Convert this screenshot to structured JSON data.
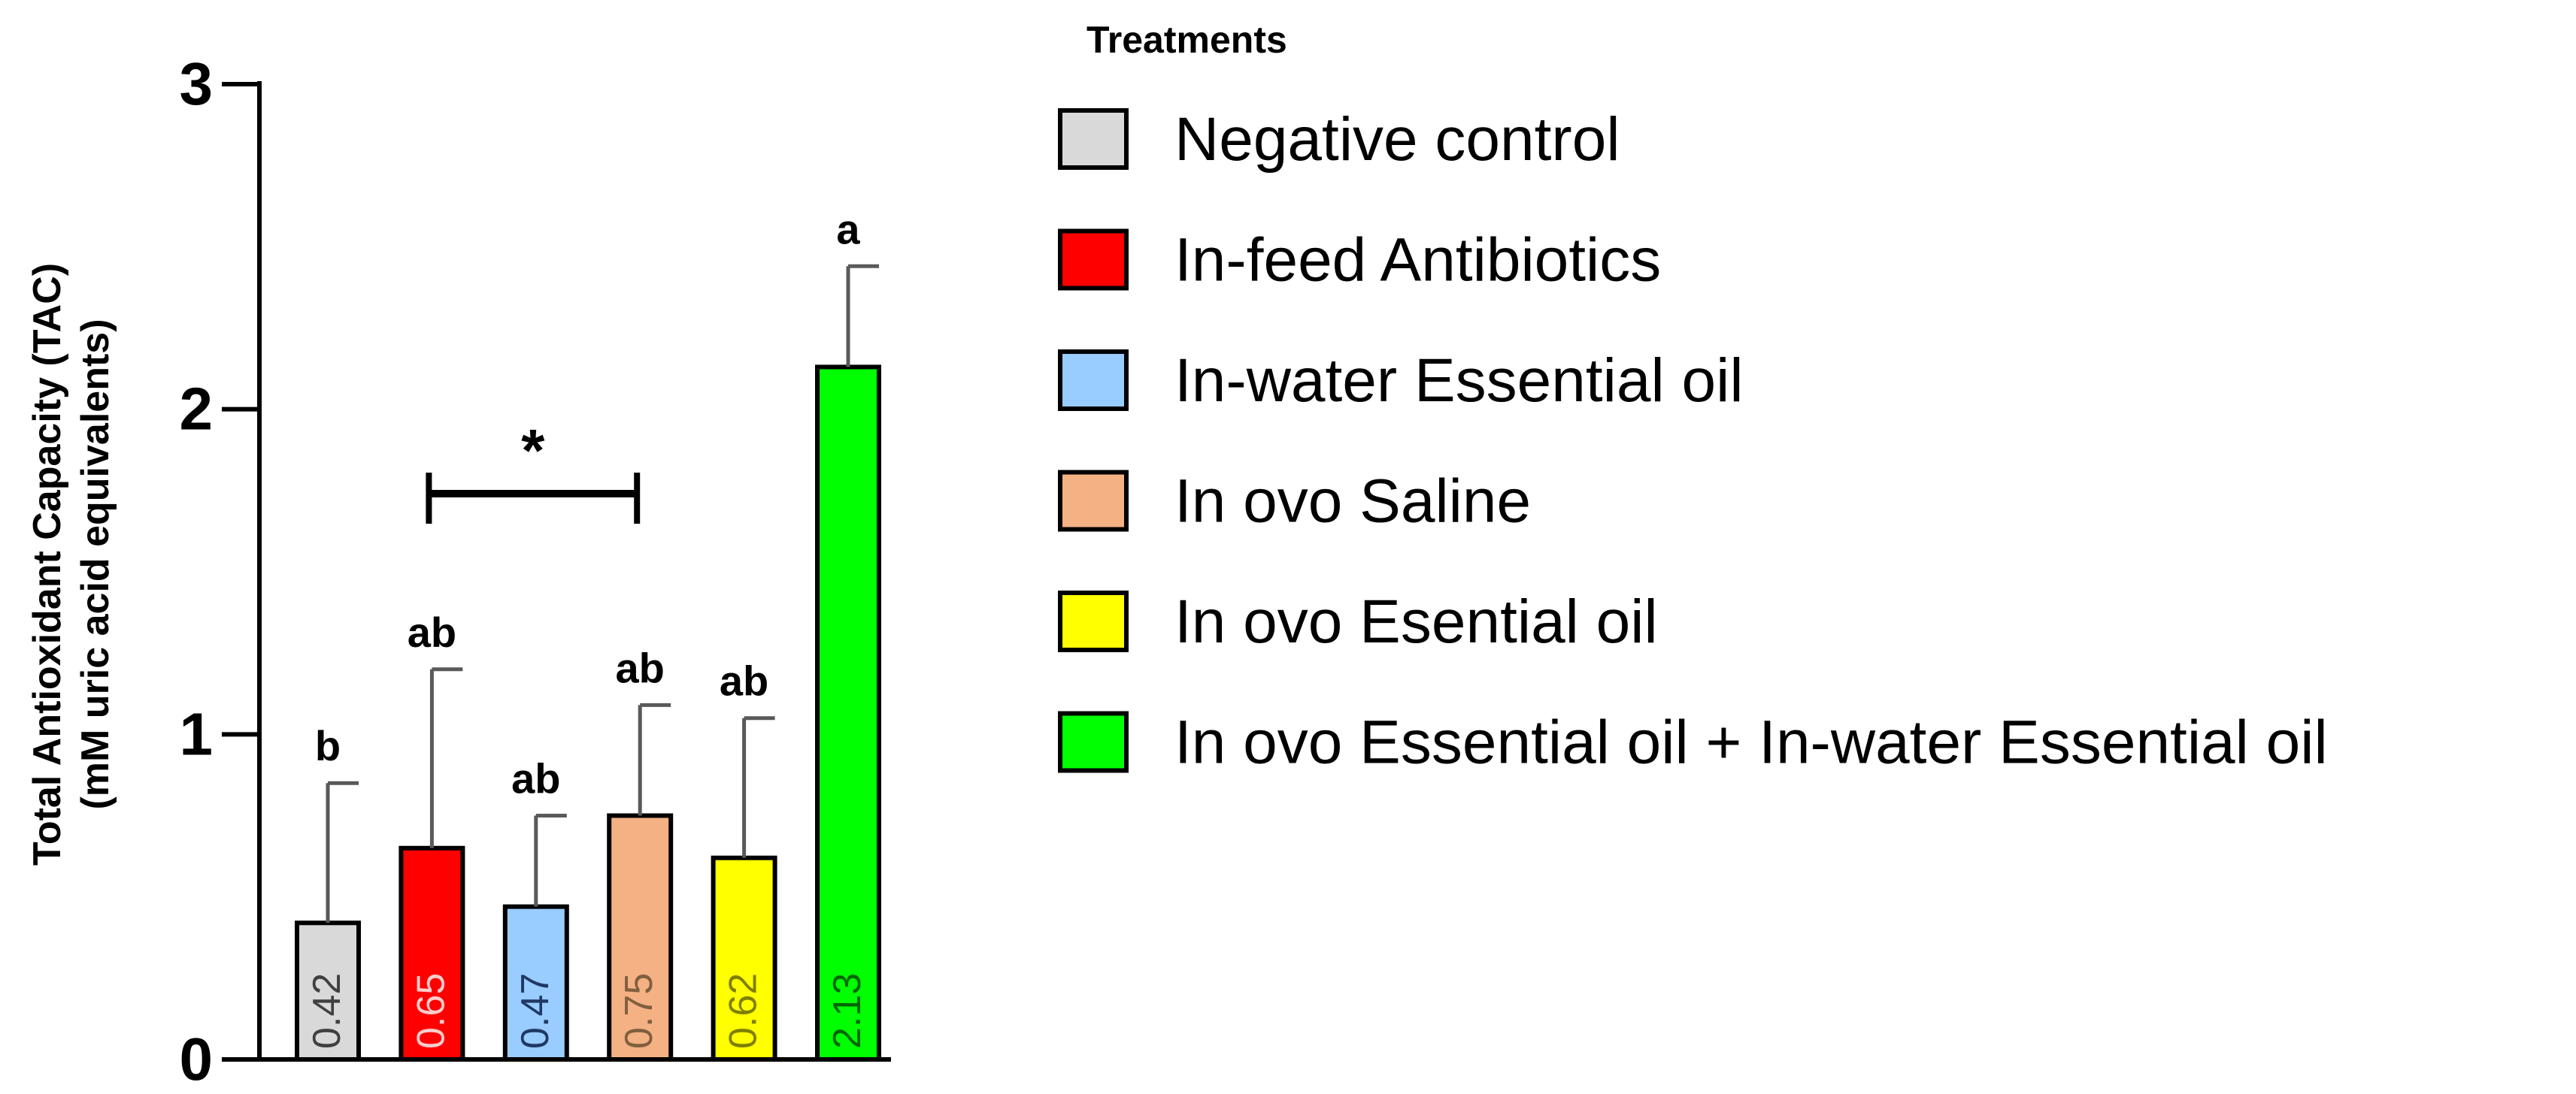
{
  "chart_data": {
    "type": "bar",
    "ylabel": [
      "Total Antioxidant Capacity (TAC)",
      "(mM uric acid equivalents)"
    ],
    "ylim": [
      0,
      3
    ],
    "yticks": [
      0,
      1,
      2,
      3
    ],
    "categories": [
      "Negative control",
      "In-feed Antibiotics",
      "In-water Essential oil",
      "In ovo Saline",
      "In ovo Esential oil",
      "In ovo Essential oil + In-water Essential oil"
    ],
    "values": [
      0.42,
      0.65,
      0.47,
      0.75,
      0.62,
      2.13
    ],
    "value_labels": [
      "0.42",
      "0.65",
      "0.47",
      "0.75",
      "0.62",
      "2.13"
    ],
    "error_upper": [
      0.85,
      1.2,
      0.75,
      1.09,
      1.05,
      2.44
    ],
    "significance_letters": [
      "b",
      "ab",
      "ab",
      "ab",
      "ab",
      "a"
    ],
    "colors": [
      "#d9d9d9",
      "#ff0000",
      "#99ccff",
      "#f4b183",
      "#ffff00",
      "#00ff00"
    ],
    "label_colors": [
      "#404040",
      "#ffcccc",
      "#1f3864",
      "#7f5f3f",
      "#7f7f00",
      "#006600"
    ],
    "comparison": {
      "from_index": 1,
      "to_index": 3,
      "symbol": "*"
    },
    "legend": {
      "title": "Treatments",
      "placement": "right",
      "entries": [
        "Negative control",
        "In-feed Antibiotics",
        "In-water Essential oil",
        "In ovo Saline",
        "In ovo Esential oil",
        "In ovo Essential oil + In-water Essential oil"
      ]
    }
  }
}
